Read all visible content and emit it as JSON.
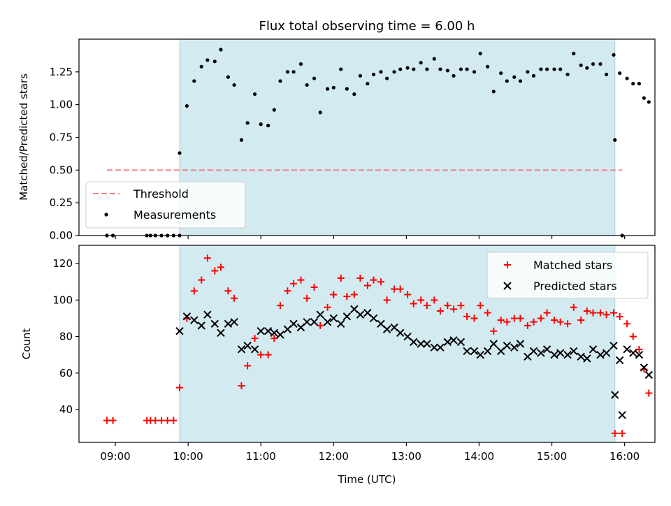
{
  "chart_data": [
    {
      "type": "scatter",
      "title": "Flux total observing time = 6.00 h",
      "xlabel": "",
      "ylabel": "Matched/Predicted stars",
      "ylim": [
        0,
        1.5
      ],
      "xlim": [
        "08:30",
        "16:25"
      ],
      "shaded_interval": [
        "09:53",
        "15:52"
      ],
      "shade_color": "#d3eaf0",
      "yticks": [
        "0.00",
        "0.25",
        "0.50",
        "0.75",
        "1.00",
        "1.25"
      ],
      "legend_position": "lower-left",
      "threshold": {
        "name": "Threshold",
        "value": 0.5,
        "x_range": [
          "08:53",
          "15:58"
        ],
        "color": "#f08080"
      },
      "series": [
        {
          "name": "Measurements",
          "color": "#000000",
          "points": [
            [
              "08:53",
              0
            ],
            [
              "08:58",
              0
            ],
            [
              "09:26",
              0
            ],
            [
              "09:29",
              0
            ],
            [
              "09:33",
              0
            ],
            [
              "09:38",
              0
            ],
            [
              "09:43",
              0
            ],
            [
              "09:48",
              0
            ],
            [
              "09:53",
              0
            ],
            [
              "09:53",
              0.63
            ],
            [
              "09:59",
              0.99
            ],
            [
              "10:05",
              1.18
            ],
            [
              "10:11",
              1.29
            ],
            [
              "10:16",
              1.34
            ],
            [
              "10:22",
              1.33
            ],
            [
              "10:27",
              1.42
            ],
            [
              "10:33",
              1.21
            ],
            [
              "10:38",
              1.15
            ],
            [
              "10:44",
              0.73
            ],
            [
              "10:49",
              0.86
            ],
            [
              "10:55",
              1.08
            ],
            [
              "11:00",
              0.85
            ],
            [
              "11:06",
              0.84
            ],
            [
              "11:11",
              0.96
            ],
            [
              "11:16",
              1.18
            ],
            [
              "11:22",
              1.25
            ],
            [
              "11:27",
              1.25
            ],
            [
              "11:33",
              1.31
            ],
            [
              "11:38",
              1.15
            ],
            [
              "11:44",
              1.2
            ],
            [
              "11:49",
              0.94
            ],
            [
              "11:55",
              1.12
            ],
            [
              "12:00",
              1.13
            ],
            [
              "12:06",
              1.27
            ],
            [
              "12:11",
              1.12
            ],
            [
              "12:17",
              1.08
            ],
            [
              "12:22",
              1.22
            ],
            [
              "12:28",
              1.16
            ],
            [
              "12:33",
              1.23
            ],
            [
              "12:39",
              1.25
            ],
            [
              "12:44",
              1.2
            ],
            [
              "12:50",
              1.25
            ],
            [
              "12:55",
              1.27
            ],
            [
              "13:01",
              1.28
            ],
            [
              "13:06",
              1.27
            ],
            [
              "13:12",
              1.32
            ],
            [
              "13:17",
              1.27
            ],
            [
              "13:23",
              1.35
            ],
            [
              "13:28",
              1.27
            ],
            [
              "13:34",
              1.26
            ],
            [
              "13:39",
              1.22
            ],
            [
              "13:45",
              1.27
            ],
            [
              "13:50",
              1.27
            ],
            [
              "13:56",
              1.25
            ],
            [
              "14:01",
              1.39
            ],
            [
              "14:07",
              1.29
            ],
            [
              "14:12",
              1.1
            ],
            [
              "14:18",
              1.24
            ],
            [
              "14:23",
              1.18
            ],
            [
              "14:29",
              1.21
            ],
            [
              "14:34",
              1.18
            ],
            [
              "14:40",
              1.25
            ],
            [
              "14:45",
              1.22
            ],
            [
              "14:51",
              1.27
            ],
            [
              "14:56",
              1.27
            ],
            [
              "15:02",
              1.27
            ],
            [
              "15:07",
              1.27
            ],
            [
              "15:13",
              1.23
            ],
            [
              "15:18",
              1.39
            ],
            [
              "15:24",
              1.3
            ],
            [
              "15:29",
              1.28
            ],
            [
              "15:34",
              1.31
            ],
            [
              "15:40",
              1.31
            ],
            [
              "15:45",
              1.23
            ],
            [
              "15:51",
              1.38
            ],
            [
              "15:56",
              1.24
            ],
            [
              "16:02",
              1.2
            ],
            [
              "16:07",
              1.16
            ],
            [
              "16:12",
              1.16
            ],
            [
              "16:16",
              1.05
            ],
            [
              "16:20",
              1.02
            ],
            [
              "15:52",
              0.73
            ],
            [
              "15:58",
              0
            ]
          ]
        }
      ]
    },
    {
      "type": "scatter",
      "title": "",
      "xlabel": "Time (UTC)",
      "ylabel": "Count",
      "ylim": [
        22,
        130
      ],
      "xlim": [
        "08:30",
        "16:25"
      ],
      "shaded_interval": [
        "09:53",
        "15:52"
      ],
      "shade_color": "#d3eaf0",
      "yticks": [
        "40",
        "60",
        "80",
        "100",
        "120"
      ],
      "xticks": [
        "09:00",
        "10:00",
        "11:00",
        "12:00",
        "13:00",
        "14:00",
        "15:00",
        "16:00"
      ],
      "legend_position": "upper-right",
      "series": [
        {
          "name": "Matched stars",
          "marker": "+",
          "color": "#ff0000",
          "points": [
            [
              "08:53",
              34
            ],
            [
              "08:58",
              34
            ],
            [
              "09:26",
              34
            ],
            [
              "09:29",
              34
            ],
            [
              "09:33",
              34
            ],
            [
              "09:38",
              34
            ],
            [
              "09:43",
              34
            ],
            [
              "09:48",
              34
            ],
            [
              "09:53",
              52
            ],
            [
              "09:59",
              90
            ],
            [
              "10:05",
              105
            ],
            [
              "10:11",
              111
            ],
            [
              "10:16",
              123
            ],
            [
              "10:22",
              116
            ],
            [
              "10:27",
              118
            ],
            [
              "10:33",
              105
            ],
            [
              "10:38",
              101
            ],
            [
              "10:44",
              53
            ],
            [
              "10:49",
              64
            ],
            [
              "10:55",
              79
            ],
            [
              "11:00",
              70
            ],
            [
              "11:06",
              70
            ],
            [
              "11:11",
              79
            ],
            [
              "11:16",
              97
            ],
            [
              "11:22",
              105
            ],
            [
              "11:27",
              109
            ],
            [
              "11:33",
              111
            ],
            [
              "11:38",
              101
            ],
            [
              "11:44",
              107
            ],
            [
              "11:49",
              86
            ],
            [
              "11:55",
              96
            ],
            [
              "12:00",
              103
            ],
            [
              "12:06",
              112
            ],
            [
              "12:11",
              102
            ],
            [
              "12:17",
              103
            ],
            [
              "12:22",
              112
            ],
            [
              "12:28",
              108
            ],
            [
              "12:33",
              111
            ],
            [
              "12:39",
              110
            ],
            [
              "12:44",
              100
            ],
            [
              "12:50",
              106
            ],
            [
              "12:55",
              106
            ],
            [
              "13:01",
              103
            ],
            [
              "13:06",
              98
            ],
            [
              "13:12",
              100
            ],
            [
              "13:17",
              97
            ],
            [
              "13:23",
              100
            ],
            [
              "13:28",
              94
            ],
            [
              "13:34",
              97
            ],
            [
              "13:39",
              95
            ],
            [
              "13:45",
              97
            ],
            [
              "13:50",
              91
            ],
            [
              "13:56",
              90
            ],
            [
              "14:01",
              97
            ],
            [
              "14:07",
              93
            ],
            [
              "14:12",
              83
            ],
            [
              "14:18",
              89
            ],
            [
              "14:23",
              88
            ],
            [
              "14:29",
              90
            ],
            [
              "14:34",
              90
            ],
            [
              "14:40",
              86
            ],
            [
              "14:45",
              88
            ],
            [
              "14:51",
              90
            ],
            [
              "14:56",
              93
            ],
            [
              "15:02",
              89
            ],
            [
              "15:07",
              88
            ],
            [
              "15:13",
              87
            ],
            [
              "15:18",
              96
            ],
            [
              "15:24",
              89
            ],
            [
              "15:29",
              94
            ],
            [
              "15:34",
              93
            ],
            [
              "15:40",
              93
            ],
            [
              "15:45",
              92
            ],
            [
              "15:51",
              93
            ],
            [
              "15:56",
              91
            ],
            [
              "16:02",
              87
            ],
            [
              "16:07",
              80
            ],
            [
              "16:12",
              73
            ],
            [
              "16:16",
              62
            ],
            [
              "16:20",
              49
            ],
            [
              "15:52",
              27
            ],
            [
              "15:58",
              27
            ]
          ]
        },
        {
          "name": "Predicted stars",
          "marker": "x",
          "color": "#000000",
          "points": [
            [
              "09:53",
              83
            ],
            [
              "09:59",
              91
            ],
            [
              "10:05",
              89
            ],
            [
              "10:11",
              86
            ],
            [
              "10:16",
              92
            ],
            [
              "10:22",
              87
            ],
            [
              "10:27",
              82
            ],
            [
              "10:33",
              87
            ],
            [
              "10:38",
              88
            ],
            [
              "10:44",
              73
            ],
            [
              "10:49",
              75
            ],
            [
              "10:55",
              73
            ],
            [
              "11:00",
              83
            ],
            [
              "11:06",
              83
            ],
            [
              "11:11",
              82
            ],
            [
              "11:16",
              81
            ],
            [
              "11:22",
              84
            ],
            [
              "11:27",
              87
            ],
            [
              "11:33",
              85
            ],
            [
              "11:38",
              88
            ],
            [
              "11:44",
              88
            ],
            [
              "11:49",
              92
            ],
            [
              "11:55",
              88
            ],
            [
              "12:00",
              90
            ],
            [
              "12:06",
              87
            ],
            [
              "12:11",
              91
            ],
            [
              "12:17",
              95
            ],
            [
              "12:22",
              92
            ],
            [
              "12:28",
              93
            ],
            [
              "12:33",
              90
            ],
            [
              "12:39",
              87
            ],
            [
              "12:44",
              84
            ],
            [
              "12:50",
              85
            ],
            [
              "12:55",
              82
            ],
            [
              "13:01",
              80
            ],
            [
              "13:06",
              77
            ],
            [
              "13:12",
              76
            ],
            [
              "13:17",
              76
            ],
            [
              "13:23",
              74
            ],
            [
              "13:28",
              74
            ],
            [
              "13:34",
              77
            ],
            [
              "13:39",
              78
            ],
            [
              "13:45",
              77
            ],
            [
              "13:50",
              72
            ],
            [
              "13:56",
              72
            ],
            [
              "14:01",
              70
            ],
            [
              "14:07",
              72
            ],
            [
              "14:12",
              76
            ],
            [
              "14:18",
              72
            ],
            [
              "14:23",
              75
            ],
            [
              "14:29",
              74
            ],
            [
              "14:34",
              76
            ],
            [
              "14:40",
              69
            ],
            [
              "14:45",
              72
            ],
            [
              "14:51",
              71
            ],
            [
              "14:56",
              73
            ],
            [
              "15:02",
              70
            ],
            [
              "15:07",
              71
            ],
            [
              "15:13",
              70
            ],
            [
              "15:18",
              72
            ],
            [
              "15:24",
              69
            ],
            [
              "15:29",
              68
            ],
            [
              "15:34",
              73
            ],
            [
              "15:40",
              70
            ],
            [
              "15:45",
              71
            ],
            [
              "15:51",
              75
            ],
            [
              "15:56",
              67
            ],
            [
              "16:02",
              73
            ],
            [
              "16:07",
              71
            ],
            [
              "16:12",
              70
            ],
            [
              "16:16",
              63
            ],
            [
              "16:20",
              59
            ],
            [
              "15:52",
              48
            ],
            [
              "15:58",
              37
            ]
          ]
        }
      ]
    }
  ]
}
